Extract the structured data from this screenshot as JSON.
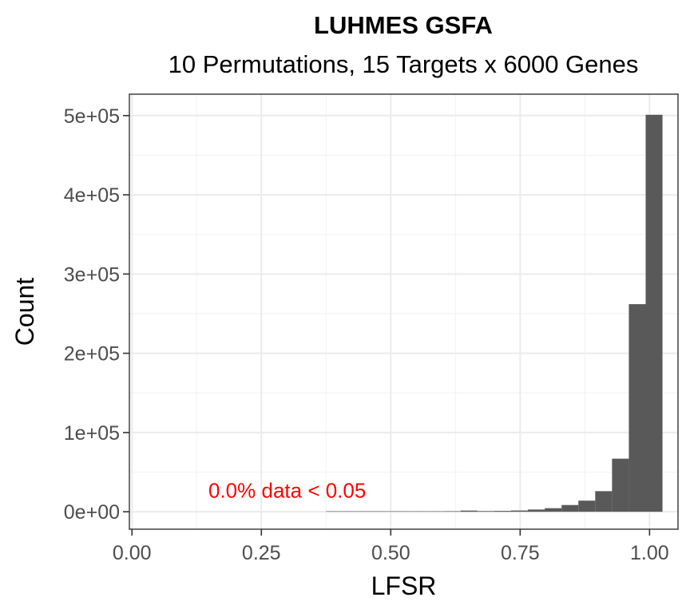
{
  "chart_data": {
    "type": "bar",
    "title": "LUHMES GSFA",
    "subtitle": "10 Permutations, 15 Targets x 6000 Genes",
    "xlabel": "LFSR",
    "ylabel": "Count",
    "xlim": [
      -0.005,
      1.055
    ],
    "ylim": [
      -22000,
      527000
    ],
    "xticks": [
      0,
      0.25,
      0.5,
      0.75,
      1
    ],
    "xtick_labels": [
      "0.00",
      "0.25",
      "0.50",
      "0.75",
      "1.00"
    ],
    "yticks": [
      0,
      100000,
      200000,
      300000,
      400000,
      500000
    ],
    "ytick_labels": [
      "0e+00",
      "1e+05",
      "2e+05",
      "3e+05",
      "4e+05",
      "5e+05"
    ],
    "grid": true,
    "bar_color": "#595959",
    "bins": [
      {
        "x0": 0.375,
        "x1": 0.4075,
        "count": 300
      },
      {
        "x0": 0.4075,
        "x1": 0.44,
        "count": 400
      },
      {
        "x0": 0.44,
        "x1": 0.4725,
        "count": 300
      },
      {
        "x0": 0.4725,
        "x1": 0.505,
        "count": 300
      },
      {
        "x0": 0.505,
        "x1": 0.5375,
        "count": 400
      },
      {
        "x0": 0.5375,
        "x1": 0.57,
        "count": 500
      },
      {
        "x0": 0.57,
        "x1": 0.6025,
        "count": 600
      },
      {
        "x0": 0.6025,
        "x1": 0.635,
        "count": 700
      },
      {
        "x0": 0.635,
        "x1": 0.6675,
        "count": 1500
      },
      {
        "x0": 0.6675,
        "x1": 0.7,
        "count": 900
      },
      {
        "x0": 0.7,
        "x1": 0.7325,
        "count": 1100
      },
      {
        "x0": 0.7325,
        "x1": 0.765,
        "count": 1600
      },
      {
        "x0": 0.765,
        "x1": 0.7975,
        "count": 2800
      },
      {
        "x0": 0.7975,
        "x1": 0.83,
        "count": 4500
      },
      {
        "x0": 0.83,
        "x1": 0.8625,
        "count": 8500
      },
      {
        "x0": 0.8625,
        "x1": 0.895,
        "count": 14000
      },
      {
        "x0": 0.895,
        "x1": 0.9275,
        "count": 26000
      },
      {
        "x0": 0.9275,
        "x1": 0.96,
        "count": 67000
      },
      {
        "x0": 0.96,
        "x1": 0.9925,
        "count": 262000
      },
      {
        "x0": 0.9925,
        "x1": 1.025,
        "count": 501000
      }
    ],
    "annotation": {
      "text": "0.0% data < 0.05",
      "color": "#ff0000"
    }
  }
}
